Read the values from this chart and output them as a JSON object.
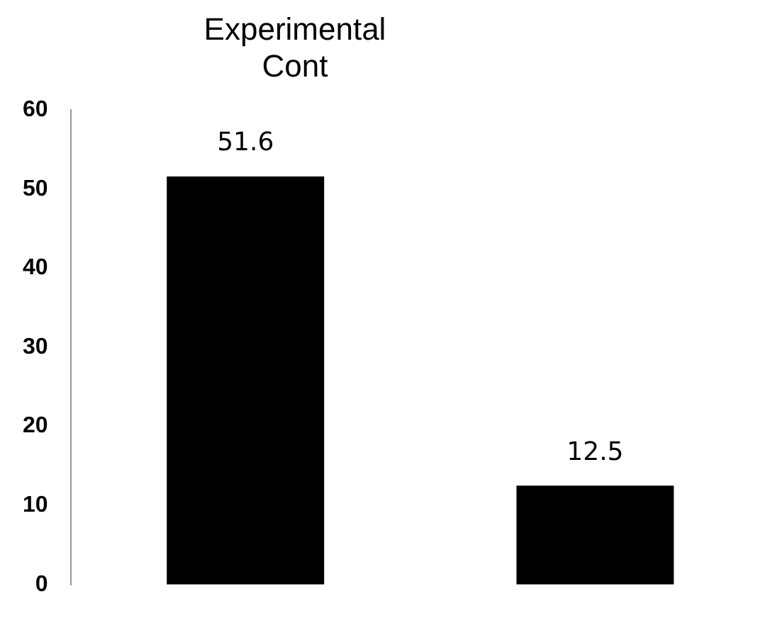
{
  "chart_data": {
    "type": "bar",
    "title": "Experimental\nCont",
    "categories": [
      null,
      null
    ],
    "values": [
      51.6,
      12.5
    ],
    "color": "#000000",
    "ylim": [
      0,
      60
    ],
    "yticks": [
      0,
      10,
      20,
      30,
      40,
      50,
      60
    ],
    "grid": false,
    "data_labels": true
  }
}
